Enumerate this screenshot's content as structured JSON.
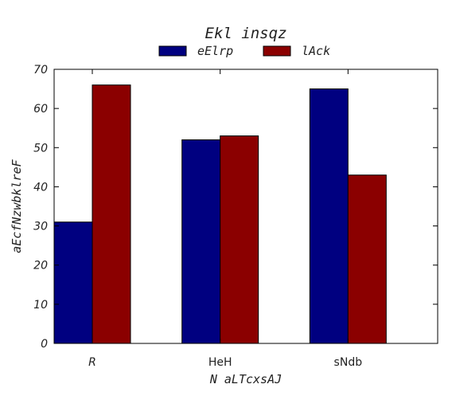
{
  "chart_data": {
    "type": "bar",
    "title": "Ekl insqz",
    "xlabel": "N aLTcxsAJ",
    "ylabel": "aEcfNzwbklreF",
    "categories": [
      "R",
      "HeH",
      "sNdb"
    ],
    "series": [
      {
        "name": "eElrp",
        "values": [
          31,
          52,
          65
        ],
        "color": "#000080"
      },
      {
        "name": "lAck",
        "values": [
          66,
          53,
          43
        ],
        "color": "#8b0000"
      }
    ],
    "ylim": [
      0,
      70
    ],
    "yticks": [
      0,
      10,
      20,
      30,
      40,
      50,
      60,
      70
    ],
    "grid": false,
    "legend_position": "top-center"
  }
}
